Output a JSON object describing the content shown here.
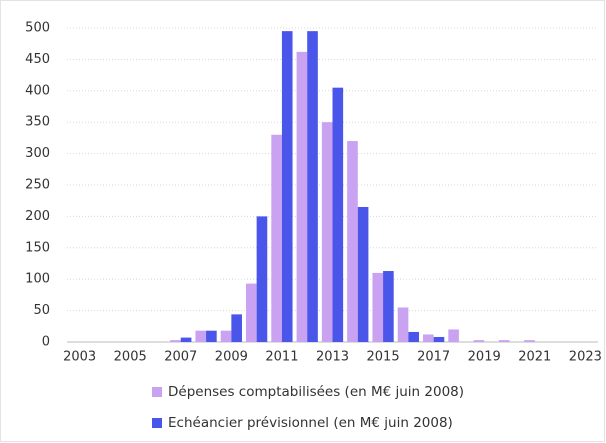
{
  "chart_data": {
    "type": "bar",
    "categories": [
      "2003",
      null,
      "2005",
      null,
      "2007",
      null,
      "2009",
      null,
      "2011",
      null,
      "2013",
      null,
      "2015",
      null,
      "2017",
      null,
      "2019",
      null,
      "2021",
      null,
      "2023"
    ],
    "series": [
      {
        "name": "Dépenses comptabilisées (en M€ juin 2008)",
        "color": "#c9a3f2",
        "values": [
          0,
          0,
          0,
          0,
          3,
          18,
          18,
          93,
          330,
          462,
          350,
          320,
          110,
          55,
          12,
          20,
          3,
          3,
          3,
          0,
          0
        ]
      },
      {
        "name": "Echéancier prévisionnel (en M€ juin 2008)",
        "color": "#4a55ea",
        "values": [
          0,
          0,
          0,
          0,
          7,
          18,
          44,
          200,
          495,
          495,
          405,
          215,
          113,
          16,
          8,
          0,
          0,
          0,
          0,
          0,
          0
        ]
      }
    ],
    "ylim": [
      0,
      500
    ],
    "yticks": [
      0,
      50,
      100,
      150,
      200,
      250,
      300,
      350,
      400,
      450,
      500
    ],
    "grid": true,
    "legend": "bottom"
  }
}
